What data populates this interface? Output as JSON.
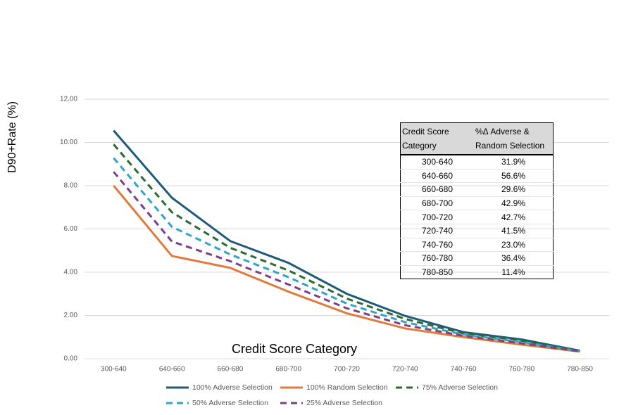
{
  "chart_data": {
    "type": "line",
    "y_label": "D90+Rate (%)",
    "x_label": "Credit Score Category",
    "categories": [
      "300-640",
      "640-660",
      "660-680",
      "680-700",
      "700-720",
      "720-740",
      "740-760",
      "760-780",
      "780-850"
    ],
    "series": [
      {
        "name": "100% Adverse Selection",
        "color": "#1f5a7a",
        "style": "solid",
        "values": [
          10.55,
          7.44,
          5.44,
          4.43,
          3.0,
          1.98,
          1.23,
          0.89,
          0.37
        ]
      },
      {
        "name": "100% Random Selection",
        "color": "#e07b39",
        "style": "solid",
        "values": [
          8.0,
          4.75,
          4.2,
          3.1,
          2.1,
          1.4,
          1.0,
          0.65,
          0.33
        ]
      },
      {
        "name": "75% Adverse Selection",
        "color": "#2c6a30",
        "style": "dashed",
        "values": [
          9.91,
          6.77,
          5.13,
          4.08,
          2.78,
          1.84,
          1.17,
          0.83,
          0.36
        ]
      },
      {
        "name": "50% Adverse Selection",
        "color": "#2fa3c8",
        "style": "dashed",
        "values": [
          9.28,
          6.1,
          4.82,
          3.77,
          2.55,
          1.69,
          1.12,
          0.77,
          0.35
        ]
      },
      {
        "name": "25% Adverse Selection",
        "color": "#7b3f8e",
        "style": "dashed",
        "values": [
          8.64,
          5.42,
          4.51,
          3.43,
          2.33,
          1.55,
          1.06,
          0.71,
          0.34
        ]
      }
    ],
    "ylim": [
      0,
      12
    ],
    "yticks": [
      {
        "value": 0,
        "label": "0.00"
      },
      {
        "value": 2,
        "label": "2.00"
      },
      {
        "value": 4,
        "label": "4.00"
      },
      {
        "value": 6,
        "label": "6.00"
      },
      {
        "value": 8,
        "label": "8.00"
      },
      {
        "value": 10,
        "label": "10.00"
      },
      {
        "value": 12,
        "label": "12.00"
      }
    ],
    "grid": true,
    "legend": "bottom"
  },
  "table": {
    "headers": [
      "Credit Score Category",
      "%Δ Adverse & Random Selection"
    ],
    "rows": [
      [
        "300-640",
        "31.9%"
      ],
      [
        "640-660",
        "56.6%"
      ],
      [
        "660-680",
        "29.6%"
      ],
      [
        "680-700",
        "42.9%"
      ],
      [
        "700-720",
        "42.7%"
      ],
      [
        "720-740",
        "41.5%"
      ],
      [
        "740-760",
        "23.0%"
      ],
      [
        "760-780",
        "36.4%"
      ],
      [
        "780-850",
        "11.4%"
      ]
    ]
  }
}
